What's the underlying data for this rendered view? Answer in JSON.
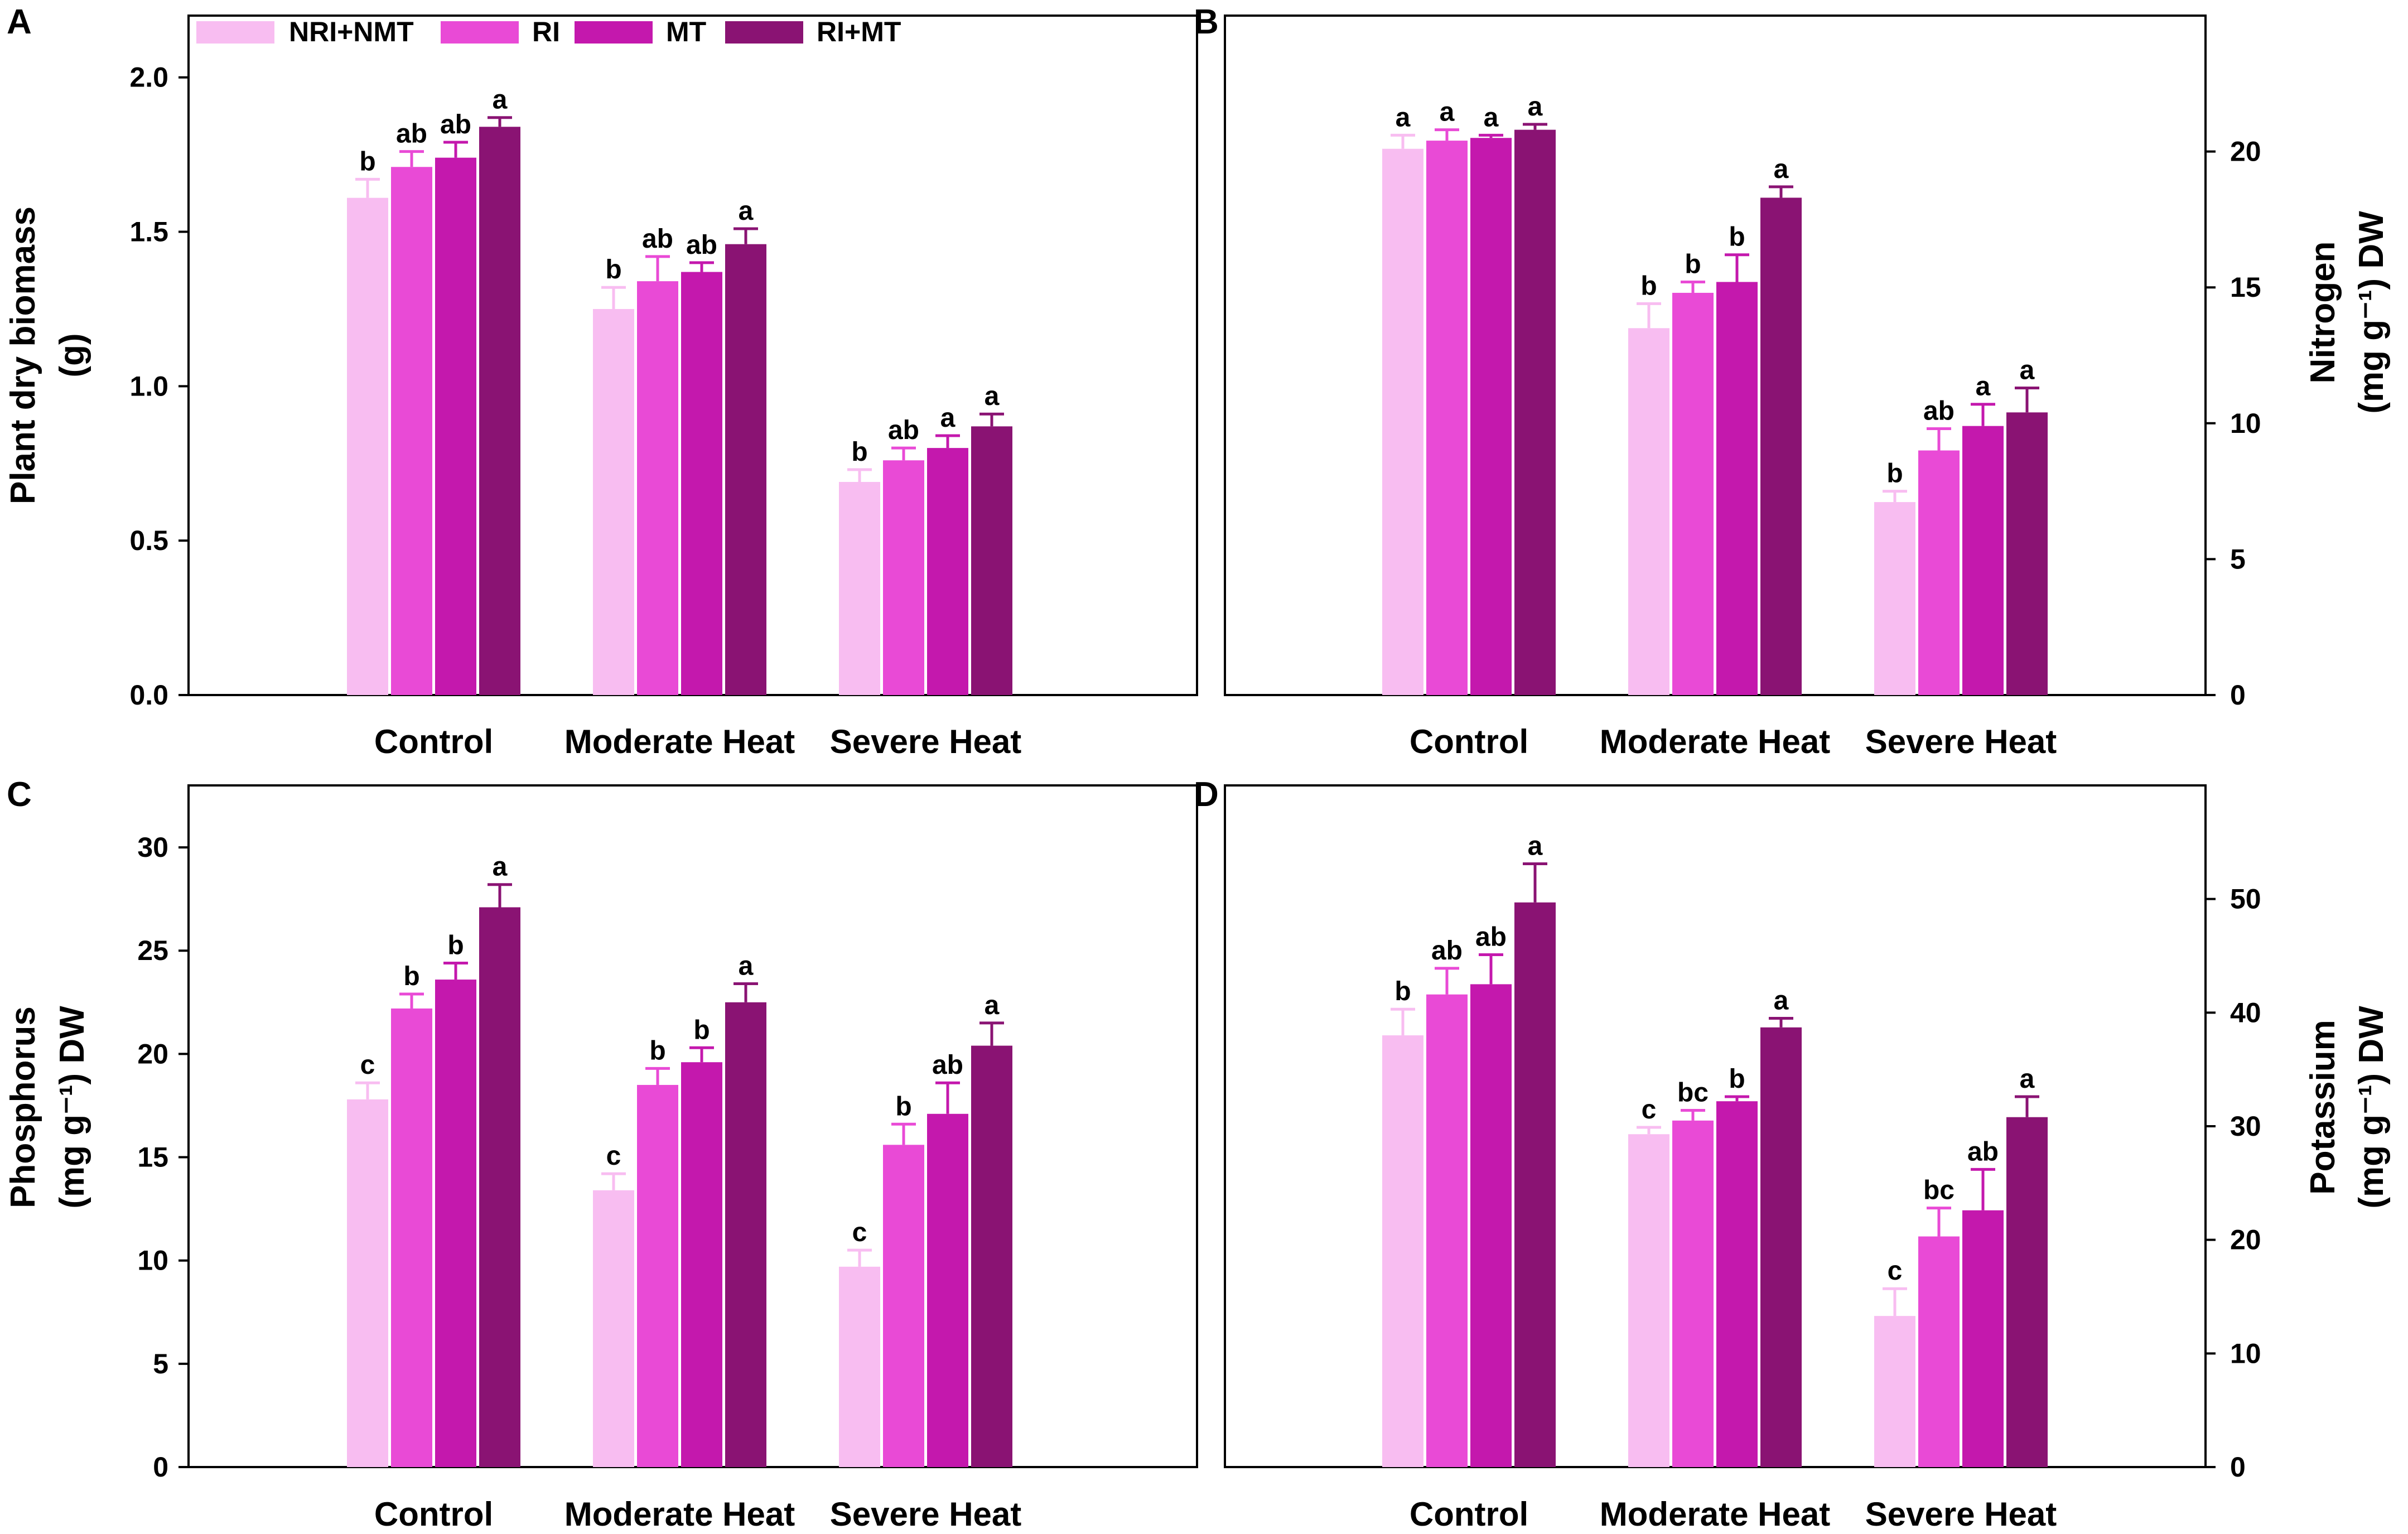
{
  "figure": {
    "colors": {
      "NRI+NMT": "#f8bdf1",
      "RI": "#e94ad6",
      "MT": "#c418ad",
      "RI+MT": "#8a1373"
    },
    "legend": [
      "NRI+NMT",
      "RI",
      "MT",
      "RI+MT"
    ]
  },
  "chart_data": [
    {
      "panel": "A",
      "type": "bar",
      "categories": [
        "Control",
        "Moderate Heat",
        "Severe Heat"
      ],
      "ylabel_lines": [
        "Plant dry biomass",
        "(g)"
      ],
      "ylim": [
        0,
        2.2
      ],
      "yticks": [
        0,
        0.5,
        1.0,
        1.5,
        2.0
      ],
      "ytick_labels": [
        "0.0",
        "0.5",
        "1.0",
        "1.5",
        "2.0"
      ],
      "yaxis_side": "left",
      "legend_position": "top-left",
      "series": [
        {
          "name": "NRI+NMT",
          "values": [
            1.61,
            1.25,
            0.69
          ],
          "errors": [
            0.06,
            0.07,
            0.04
          ],
          "letters": [
            "b",
            "b",
            "b"
          ]
        },
        {
          "name": "RI",
          "values": [
            1.71,
            1.34,
            0.76
          ],
          "errors": [
            0.05,
            0.08,
            0.04
          ],
          "letters": [
            "ab",
            "ab",
            "ab"
          ]
        },
        {
          "name": "MT",
          "values": [
            1.74,
            1.37,
            0.8
          ],
          "errors": [
            0.05,
            0.03,
            0.04
          ],
          "letters": [
            "ab",
            "ab",
            "a"
          ]
        },
        {
          "name": "RI+MT",
          "values": [
            1.84,
            1.46,
            0.87
          ],
          "errors": [
            0.03,
            0.05,
            0.04
          ],
          "letters": [
            "a",
            "a",
            "a"
          ]
        }
      ]
    },
    {
      "panel": "B",
      "type": "bar",
      "categories": [
        "Control",
        "Moderate Heat",
        "Severe Heat"
      ],
      "ylabel_lines": [
        "Nitrogen",
        "(mg g⁻¹) DW"
      ],
      "ylim": [
        0,
        25
      ],
      "yticks": [
        0,
        5,
        10,
        15,
        20
      ],
      "ytick_labels": [
        "0",
        "5",
        "10",
        "15",
        "20"
      ],
      "yaxis_side": "right",
      "series": [
        {
          "name": "NRI+NMT",
          "values": [
            20.1,
            13.5,
            7.1
          ],
          "errors": [
            0.5,
            0.9,
            0.4
          ],
          "letters": [
            "a",
            "b",
            "b"
          ]
        },
        {
          "name": "RI",
          "values": [
            20.4,
            14.8,
            9.0
          ],
          "errors": [
            0.4,
            0.4,
            0.8
          ],
          "letters": [
            "a",
            "b",
            "ab"
          ]
        },
        {
          "name": "MT",
          "values": [
            20.5,
            15.2,
            9.9
          ],
          "errors": [
            0.1,
            1.0,
            0.8
          ],
          "letters": [
            "a",
            "b",
            "a"
          ]
        },
        {
          "name": "RI+MT",
          "values": [
            20.8,
            18.3,
            10.4
          ],
          "errors": [
            0.2,
            0.4,
            0.9
          ],
          "letters": [
            "a",
            "a",
            "a"
          ]
        }
      ]
    },
    {
      "panel": "C",
      "type": "bar",
      "categories": [
        "Control",
        "Moderate Heat",
        "Severe Heat"
      ],
      "ylabel_lines": [
        "Phosphorus",
        "(mg g⁻¹) DW"
      ],
      "ylim": [
        0,
        33
      ],
      "yticks": [
        0,
        5,
        10,
        15,
        20,
        25,
        30
      ],
      "ytick_labels": [
        "0",
        "5",
        "10",
        "15",
        "20",
        "25",
        "30"
      ],
      "yaxis_side": "left",
      "series": [
        {
          "name": "NRI+NMT",
          "values": [
            17.8,
            13.4,
            9.7
          ],
          "errors": [
            0.8,
            0.8,
            0.8
          ],
          "letters": [
            "c",
            "c",
            "c"
          ]
        },
        {
          "name": "RI",
          "values": [
            22.2,
            18.5,
            15.6
          ],
          "errors": [
            0.7,
            0.8,
            1.0
          ],
          "letters": [
            "b",
            "b",
            "b"
          ]
        },
        {
          "name": "MT",
          "values": [
            23.6,
            19.6,
            17.1
          ],
          "errors": [
            0.8,
            0.7,
            1.5
          ],
          "letters": [
            "b",
            "b",
            "ab"
          ]
        },
        {
          "name": "RI+MT",
          "values": [
            27.1,
            22.5,
            20.4
          ],
          "errors": [
            1.1,
            0.9,
            1.1
          ],
          "letters": [
            "a",
            "a",
            "a"
          ]
        }
      ]
    },
    {
      "panel": "D",
      "type": "bar",
      "categories": [
        "Control",
        "Moderate Heat",
        "Severe Heat"
      ],
      "ylabel_lines": [
        "Potassium",
        "(mg g⁻¹) DW"
      ],
      "ylim": [
        0,
        60
      ],
      "yticks": [
        0,
        10,
        20,
        30,
        40,
        50
      ],
      "ytick_labels": [
        "0",
        "10",
        "20",
        "30",
        "40",
        "50"
      ],
      "yaxis_side": "right",
      "series": [
        {
          "name": "NRI+NMT",
          "values": [
            38.0,
            29.3,
            13.3
          ],
          "errors": [
            2.3,
            0.6,
            2.4
          ],
          "letters": [
            "b",
            "c",
            "c"
          ]
        },
        {
          "name": "RI",
          "values": [
            41.6,
            30.5,
            20.3
          ],
          "errors": [
            2.3,
            0.9,
            2.5
          ],
          "letters": [
            "ab",
            "bc",
            "bc"
          ]
        },
        {
          "name": "MT",
          "values": [
            42.5,
            32.2,
            22.6
          ],
          "errors": [
            2.6,
            0.4,
            3.6
          ],
          "letters": [
            "ab",
            "b",
            "ab"
          ]
        },
        {
          "name": "RI+MT",
          "values": [
            49.7,
            38.7,
            30.8
          ],
          "errors": [
            3.4,
            0.8,
            1.8
          ],
          "letters": [
            "a",
            "a",
            "a"
          ]
        }
      ]
    }
  ]
}
